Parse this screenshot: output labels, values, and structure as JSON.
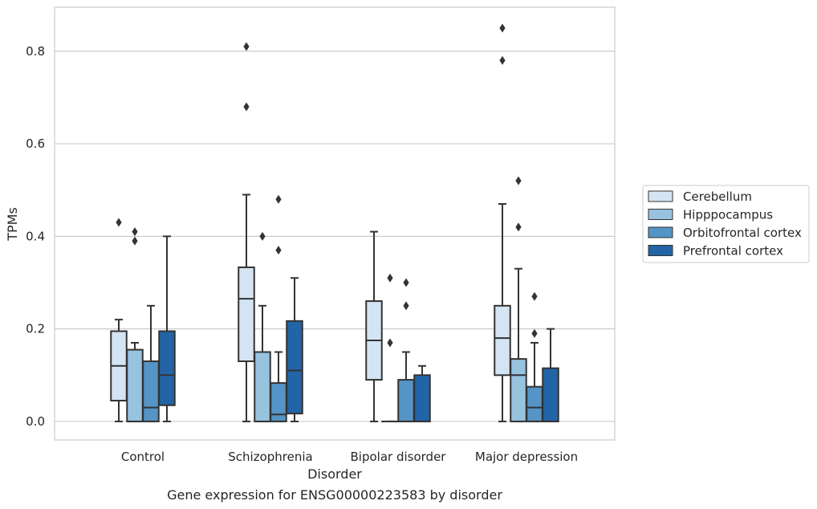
{
  "caption": "Gene expression for ENSG00000223583 by disorder",
  "chart_data": {
    "type": "box",
    "title": "",
    "xlabel": "Disorder",
    "ylabel": "TPMs",
    "ylim": [
      -0.04,
      0.895
    ],
    "yticks": [
      "0.0",
      "0.2",
      "0.4",
      "0.6",
      "0.8"
    ],
    "grid": "horizontal",
    "legend_position": "right",
    "categories": [
      "Control",
      "Schizophrenia",
      "Bipolar disorder",
      "Major depression"
    ],
    "series": [
      {
        "name": "Cerebellum",
        "color": "#d4e4f3",
        "boxes": [
          {
            "q1": 0.045,
            "median": 0.12,
            "q3": 0.195,
            "whisker_low": 0.0,
            "whisker_high": 0.22,
            "outliers": [
              0.43
            ]
          },
          {
            "q1": 0.13,
            "median": 0.265,
            "q3": 0.333,
            "whisker_low": 0.0,
            "whisker_high": 0.49,
            "outliers": [
              0.81,
              0.68
            ]
          },
          {
            "q1": 0.09,
            "median": 0.175,
            "q3": 0.26,
            "whisker_low": 0.0,
            "whisker_high": 0.41,
            "outliers": []
          },
          {
            "q1": 0.1,
            "median": 0.18,
            "q3": 0.25,
            "whisker_low": 0.0,
            "whisker_high": 0.47,
            "outliers": [
              0.85,
              0.78
            ]
          }
        ]
      },
      {
        "name": "Hipppocampus",
        "color": "#97c3df",
        "boxes": [
          {
            "q1": 0.0,
            "median": 0.0,
            "q3": 0.155,
            "whisker_low": 0.0,
            "whisker_high": 0.17,
            "outliers": [
              0.41,
              0.39
            ]
          },
          {
            "q1": 0.0,
            "median": 0.0,
            "q3": 0.15,
            "whisker_low": 0.0,
            "whisker_high": 0.25,
            "outliers": [
              0.4
            ]
          },
          {
            "q1": 0.0,
            "median": 0.0,
            "q3": 0.0,
            "whisker_low": 0.0,
            "whisker_high": 0.0,
            "outliers": [
              0.31,
              0.17
            ]
          },
          {
            "q1": 0.0,
            "median": 0.1,
            "q3": 0.135,
            "whisker_low": 0.0,
            "whisker_high": 0.33,
            "outliers": [
              0.52,
              0.42
            ]
          }
        ]
      },
      {
        "name": "Orbitofrontal cortex",
        "color": "#5494c6",
        "boxes": [
          {
            "q1": 0.0,
            "median": 0.03,
            "q3": 0.13,
            "whisker_low": 0.0,
            "whisker_high": 0.25,
            "outliers": []
          },
          {
            "q1": 0.0,
            "median": 0.015,
            "q3": 0.083,
            "whisker_low": 0.0,
            "whisker_high": 0.15,
            "outliers": [
              0.48,
              0.37
            ]
          },
          {
            "q1": 0.0,
            "median": 0.0,
            "q3": 0.09,
            "whisker_low": 0.0,
            "whisker_high": 0.15,
            "outliers": [
              0.3,
              0.25
            ]
          },
          {
            "q1": 0.0,
            "median": 0.03,
            "q3": 0.075,
            "whisker_low": 0.0,
            "whisker_high": 0.17,
            "outliers": [
              0.27,
              0.19
            ]
          }
        ]
      },
      {
        "name": "Prefrontal cortex",
        "color": "#2364a7",
        "boxes": [
          {
            "q1": 0.035,
            "median": 0.1,
            "q3": 0.195,
            "whisker_low": 0.0,
            "whisker_high": 0.4,
            "outliers": []
          },
          {
            "q1": 0.017,
            "median": 0.11,
            "q3": 0.217,
            "whisker_low": 0.0,
            "whisker_high": 0.31,
            "outliers": []
          },
          {
            "q1": 0.0,
            "median": 0.0,
            "q3": 0.1,
            "whisker_low": 0.0,
            "whisker_high": 0.12,
            "outliers": []
          },
          {
            "q1": 0.0,
            "median": 0.0,
            "q3": 0.115,
            "whisker_low": 0.0,
            "whisker_high": 0.2,
            "outliers": []
          }
        ]
      }
    ]
  }
}
